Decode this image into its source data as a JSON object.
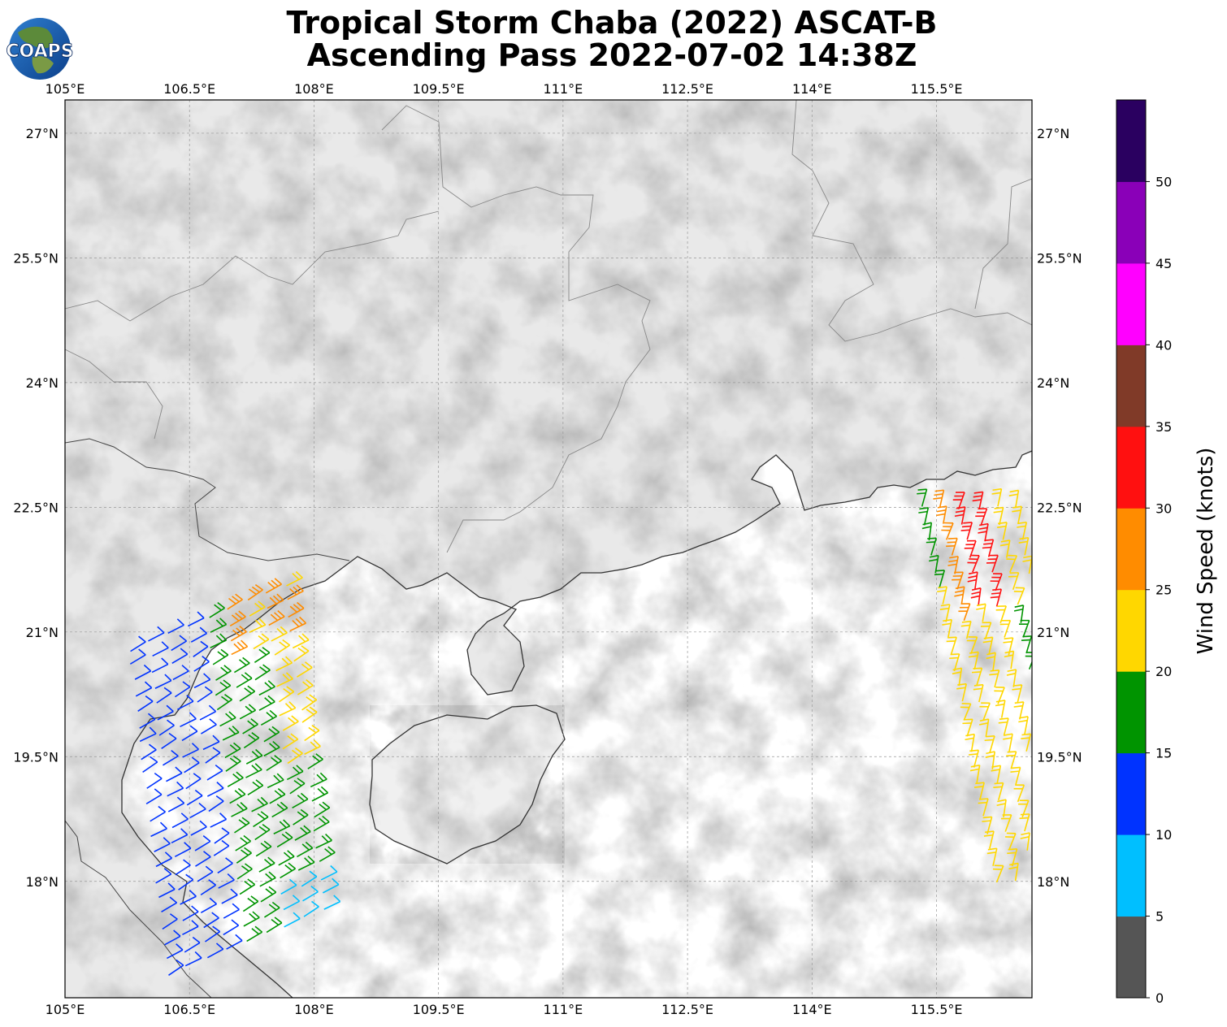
{
  "title_line1": "Tropical Storm Chaba (2022) ASCAT-B",
  "title_line2": "Ascending Pass 2022-07-02 14:38Z",
  "logo_text": "COAPS",
  "map": {
    "lon_ticks": [
      "105°E",
      "106.5°E",
      "108°E",
      "109.5°E",
      "111°E",
      "112.5°E",
      "114°E",
      "115.5°E"
    ],
    "lat_ticks": [
      "27°N",
      "25.5°N",
      "24°N",
      "22.5°N",
      "21°N",
      "19.5°N",
      "18°N"
    ],
    "lon_range": [
      105,
      116.65
    ],
    "lat_range": [
      16.6,
      27.4
    ]
  },
  "colorbar": {
    "label": "Wind Speed (knots)",
    "ticks": [
      "0",
      "5",
      "10",
      "15",
      "20",
      "25",
      "30",
      "35",
      "40",
      "45",
      "50"
    ],
    "colors": [
      "#555555",
      "#00bfff",
      "#0033ff",
      "#009400",
      "#ffd700",
      "#ff8c00",
      "#ff1010",
      "#803a28",
      "#ff00ff",
      "#8a00b8",
      "#2a0060"
    ]
  },
  "wind_barbs": {
    "swath_west": {
      "lon_range": [
        106.3,
        108.4
      ],
      "lat_range": [
        16.6,
        20.8
      ]
    },
    "swath_east": {
      "lon_range": [
        115.2,
        116.6
      ],
      "lat_range": [
        17.6,
        22.6
      ]
    }
  }
}
